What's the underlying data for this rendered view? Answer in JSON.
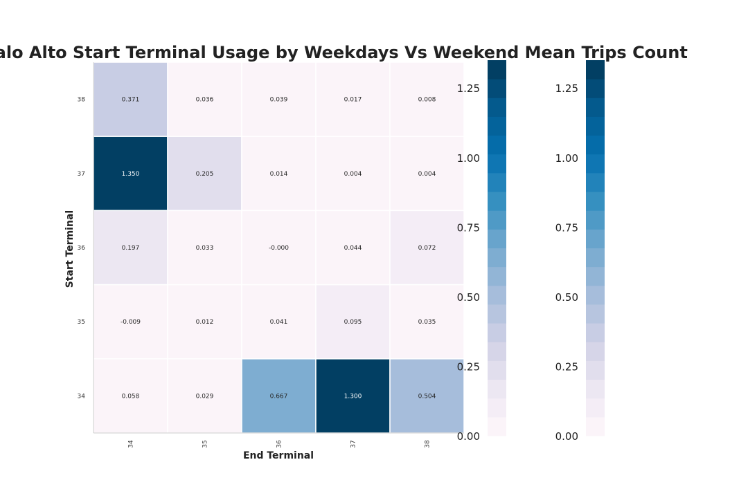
{
  "chart_data": {
    "type": "heatmap",
    "title": "r - Palo Alto Start Terminal Usage by Weekdays Vs Weekend Mean Trips Count",
    "xlabel": "End Terminal",
    "ylabel": "Start Terminal",
    "x_categories": [
      "34",
      "35",
      "36",
      "37",
      "38"
    ],
    "y_categories": [
      "38",
      "37",
      "36",
      "35",
      "34"
    ],
    "values": [
      [
        0.371,
        0.036,
        0.039,
        0.017,
        0.008
      ],
      [
        1.35,
        0.205,
        0.014,
        0.004,
        0.004
      ],
      [
        0.197,
        0.033,
        -0.0,
        0.044,
        0.072
      ],
      [
        -0.009,
        0.012,
        0.041,
        0.095,
        0.035
      ],
      [
        0.058,
        0.029,
        0.667,
        1.3,
        0.504
      ]
    ],
    "value_labels": [
      [
        "0.371",
        "0.036",
        "0.039",
        "0.017",
        "0.008"
      ],
      [
        "1.350",
        "0.205",
        "0.014",
        "0.004",
        "0.004"
      ],
      [
        "0.197",
        "0.033",
        "-0.000",
        "0.044",
        "0.072"
      ],
      [
        "-0.009",
        "0.012",
        "0.041",
        "0.095",
        "0.035"
      ],
      [
        "0.058",
        "0.029",
        "0.667",
        "1.300",
        "0.504"
      ]
    ],
    "colormap": "PuBu",
    "color_range": [
      0,
      1.35
    ],
    "colorbars": [
      {
        "ticks": [
          "0.00",
          "0.25",
          "0.50",
          "0.75",
          "1.00",
          "1.25"
        ],
        "range": [
          0,
          1.35
        ],
        "levels": 20
      },
      {
        "ticks": [
          "0.00",
          "0.25",
          "0.50",
          "0.75",
          "1.00",
          "1.25"
        ],
        "range": [
          0,
          1.35
        ],
        "levels": 20
      }
    ],
    "grid": false
  }
}
